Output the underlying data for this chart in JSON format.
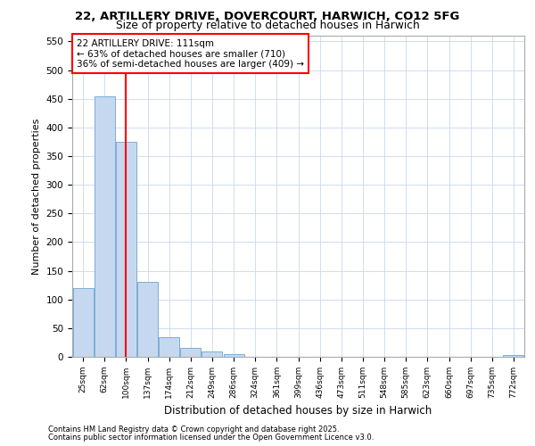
{
  "title1": "22, ARTILLERY DRIVE, DOVERCOURT, HARWICH, CO12 5FG",
  "title2": "Size of property relative to detached houses in Harwich",
  "xlabel": "Distribution of detached houses by size in Harwich",
  "ylabel": "Number of detached properties",
  "categories": [
    "25sqm",
    "62sqm",
    "100sqm",
    "137sqm",
    "174sqm",
    "212sqm",
    "249sqm",
    "286sqm",
    "324sqm",
    "361sqm",
    "399sqm",
    "436sqm",
    "473sqm",
    "511sqm",
    "548sqm",
    "585sqm",
    "623sqm",
    "660sqm",
    "697sqm",
    "735sqm",
    "772sqm"
  ],
  "bar_values": [
    120,
    455,
    375,
    130,
    35,
    15,
    10,
    5,
    0,
    0,
    0,
    0,
    0,
    0,
    0,
    0,
    0,
    0,
    0,
    0,
    3
  ],
  "bar_color": "#c5d8f0",
  "bar_edge_color": "#7bafd4",
  "red_line_x": 2.0,
  "ylim": [
    0,
    560
  ],
  "yticks": [
    0,
    50,
    100,
    150,
    200,
    250,
    300,
    350,
    400,
    450,
    500,
    550
  ],
  "annotation_line1": "22 ARTILLERY DRIVE: 111sqm",
  "annotation_line2": "← 63% of detached houses are smaller (710)",
  "annotation_line3": "36% of semi-detached houses are larger (409) →",
  "footer1": "Contains HM Land Registry data © Crown copyright and database right 2025.",
  "footer2": "Contains public sector information licensed under the Open Government Licence v3.0.",
  "bg_color": "#ffffff",
  "plot_bg_color": "#ffffff",
  "grid_color": "#c8d8ee"
}
